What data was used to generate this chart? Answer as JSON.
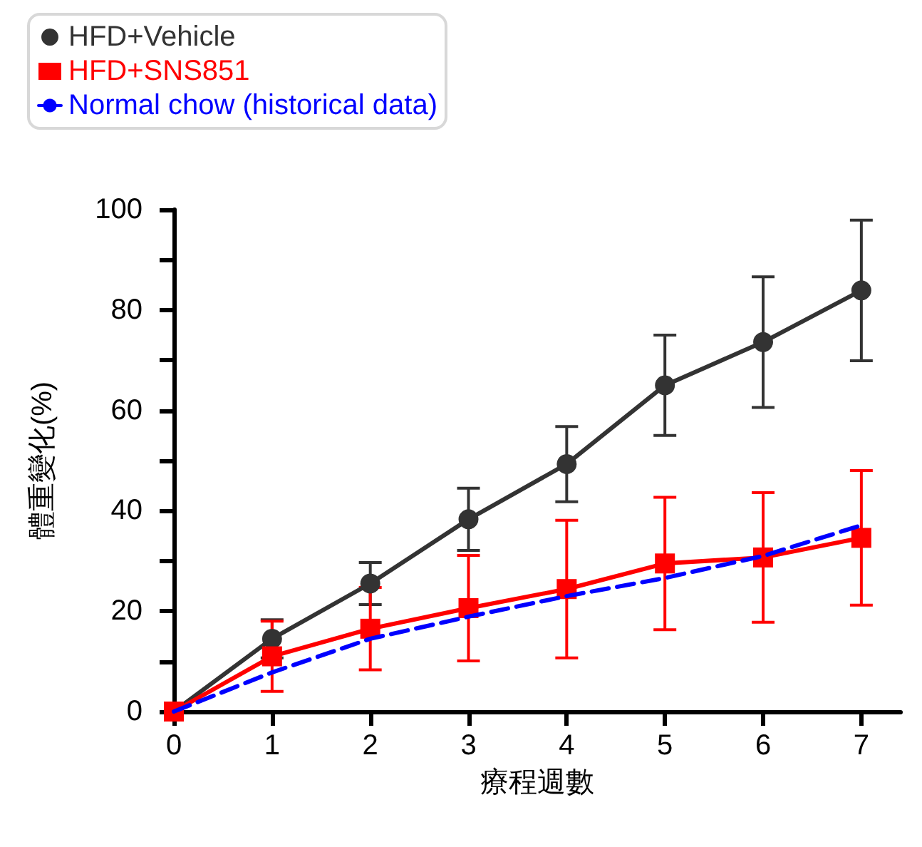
{
  "chart_data": {
    "type": "line",
    "xlabel": "療程週數",
    "ylabel": "體重變化(%)",
    "x": [
      0,
      1,
      2,
      3,
      4,
      5,
      6,
      7
    ],
    "xlim": [
      0,
      7.4
    ],
    "xticks": [
      0,
      1,
      2,
      3,
      4,
      5,
      6,
      7
    ],
    "ylim": [
      0,
      100
    ],
    "yticks": [
      0,
      {
        "value": 10,
        "label": null
      },
      20,
      {
        "value": 30,
        "label": null
      },
      40,
      {
        "value": 50,
        "label": null
      },
      60,
      {
        "value": 70,
        "label": null
      },
      80,
      {
        "value": 90,
        "label": null
      },
      100
    ],
    "grid": false,
    "legend": "top left",
    "series": [
      {
        "name": "HFD+Vehicle",
        "color": "#333333",
        "marker": "circle",
        "line_style": "solid",
        "values": [
          0,
          14.5,
          25.5,
          38.3,
          49.3,
          65,
          73.6,
          83.9
        ],
        "errors": [
          null,
          3.8,
          4.2,
          6.2,
          7.5,
          10,
          13,
          14
        ]
      },
      {
        "name": "HFD+SNS851",
        "color": "#ff0000",
        "marker": "square",
        "line_style": "solid",
        "values": [
          0,
          11,
          16.5,
          20.6,
          24.4,
          29.5,
          30.7,
          34.6
        ],
        "errors": [
          null,
          7,
          8.2,
          10.5,
          13.7,
          13.2,
          12.9,
          13.4
        ]
      },
      {
        "name": "Normal chow (historical data)",
        "color": "#0000ff",
        "marker": "none",
        "line_style": "dashed",
        "values": [
          0,
          7.8,
          14.5,
          18.9,
          23,
          26.6,
          31,
          37.1
        ]
      }
    ]
  }
}
